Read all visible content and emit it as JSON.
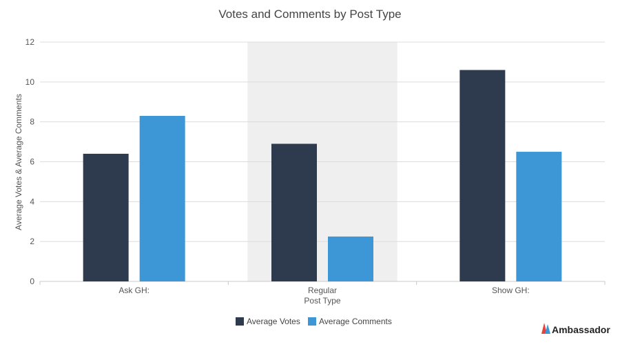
{
  "chart_data": {
    "type": "bar",
    "title": "Votes and Comments by Post Type",
    "xlabel": "Post Type",
    "ylabel": "Average Votes & Average Comments",
    "categories": [
      "Ask GH:",
      "Regular",
      "Show GH:"
    ],
    "series": [
      {
        "name": "Average Votes",
        "values": [
          6.4,
          6.9,
          10.6
        ],
        "color": "#2e3b4e"
      },
      {
        "name": "Average Comments",
        "values": [
          8.3,
          2.25,
          6.5
        ],
        "color": "#3d97d6"
      }
    ],
    "ylim": [
      0,
      12
    ],
    "yticks": [
      0,
      2,
      4,
      6,
      8,
      10,
      12
    ],
    "grid": true,
    "highlight_category": "Regular",
    "highlight_color": "#efefef",
    "legend_position": "bottom-center"
  },
  "branding": {
    "logo_text": "Ambassador",
    "logo_colors": [
      "#e8423f",
      "#3d97d6"
    ]
  }
}
